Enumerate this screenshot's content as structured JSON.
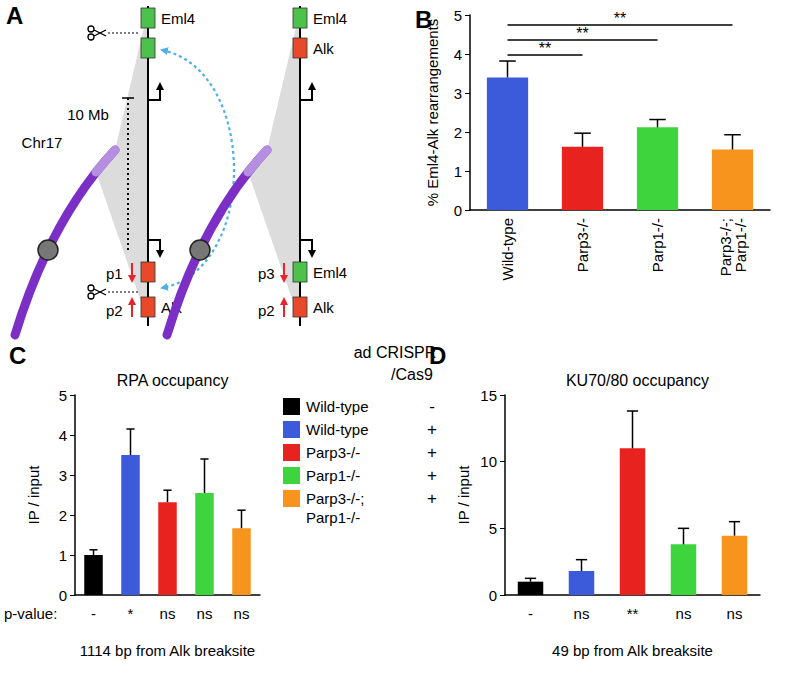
{
  "diagram": {
    "panel": "A",
    "chromosome": "Chr17",
    "distance": "10 Mb",
    "gene_colors": {
      "Eml4": "#4cc14c",
      "Alk": "#e8492b"
    },
    "before": {
      "boxes": [
        "Eml4",
        "Eml4",
        "Alk",
        "Alk"
      ],
      "labelled": [
        true,
        false,
        false,
        true
      ],
      "primers": [
        "p1",
        "p2"
      ]
    },
    "after": {
      "boxes": [
        "Eml4",
        "Alk",
        "Eml4",
        "Alk"
      ],
      "labelled": [
        true,
        true,
        true,
        true
      ],
      "primers": [
        "p3",
        "p2"
      ]
    }
  },
  "legend_panel": {
    "title": [
      "ad CRISPR",
      "/Cas9"
    ],
    "signs": [
      "-",
      "+",
      "+",
      "+",
      "+"
    ]
  },
  "chart_data": [
    {
      "panel": "B",
      "type": "bar",
      "categories": [
        "Wild-type",
        "Parp3-/-",
        "Parp1-/-",
        "Parp3-/-;\nParp1-/-"
      ],
      "values": [
        3.4,
        1.62,
        2.12,
        1.55
      ],
      "errors": [
        0.42,
        0.35,
        0.2,
        0.38
      ],
      "colors": [
        "#3b5bdb",
        "#e8231f",
        "#3ed43e",
        "#f7941d"
      ],
      "ylim": [
        0,
        5
      ],
      "yticks": [
        0,
        1,
        2,
        3,
        4,
        5
      ],
      "y_label": "% Eml4-Alk rearrangements",
      "significance": [
        {
          "from": 0,
          "to": 1,
          "label": "**"
        },
        {
          "from": 0,
          "to": 2,
          "label": "**"
        },
        {
          "from": 0,
          "to": 3,
          "label": "**"
        }
      ],
      "grid": false
    },
    {
      "panel": "C",
      "type": "bar",
      "title": "RPA occupancy",
      "categories": [
        "Wild-type",
        "Wild-type",
        "Parp3-/-",
        "Parp1-/-",
        "Parp3-/-;\nParp1-/-"
      ],
      "values": [
        1.0,
        3.5,
        2.32,
        2.55,
        1.67
      ],
      "errors": [
        0.13,
        0.65,
        0.3,
        0.85,
        0.45
      ],
      "colors": [
        "#000000",
        "#3b5bdb",
        "#e8231f",
        "#3ed43e",
        "#f7941d"
      ],
      "ylim": [
        0,
        5
      ],
      "yticks": [
        0,
        1,
        2,
        3,
        4,
        5
      ],
      "y_label": "IP / input",
      "x_label": "1114 bp from Alk breaksite",
      "p_value_label": "p-value:",
      "p_values": [
        "-",
        "*",
        "ns",
        "ns",
        "ns"
      ],
      "tick_labels": "y",
      "grid": false
    },
    {
      "panel": "D",
      "type": "bar",
      "title": "KU70/80 occupancy",
      "categories": [
        "Wild-type",
        "Wild-type",
        "Parp3-/-",
        "Parp1-/-",
        "Parp3-/-;\nParp1-/-"
      ],
      "values": [
        1.0,
        1.8,
        11.0,
        3.8,
        4.45
      ],
      "errors": [
        0.25,
        0.85,
        2.8,
        1.2,
        1.05
      ],
      "colors": [
        "#000000",
        "#3b5bdb",
        "#e8231f",
        "#3ed43e",
        "#f7941d"
      ],
      "ylim": [
        0,
        15
      ],
      "yticks": [
        0,
        5,
        10,
        15
      ],
      "y_label": "IP / input",
      "x_label": "49 bp from Alk breaksite",
      "p_values": [
        "-",
        "ns",
        "**",
        "ns",
        "ns"
      ],
      "tick_labels": "y",
      "grid": false
    }
  ]
}
